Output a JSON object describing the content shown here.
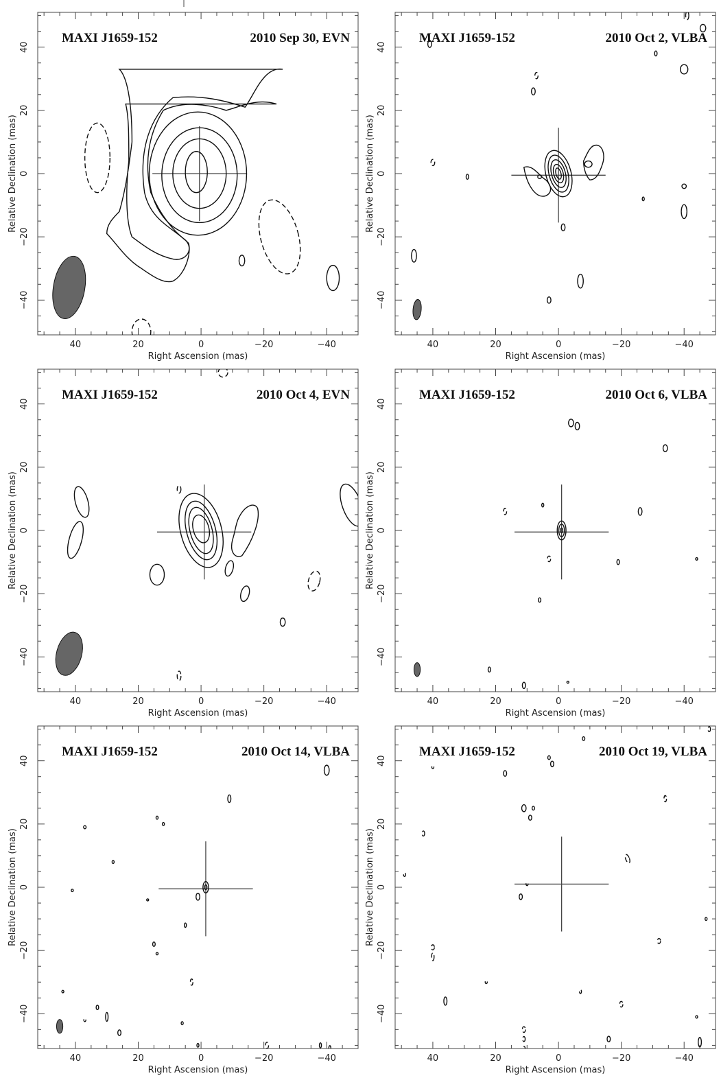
{
  "figure": {
    "source": "MAXI J1659-152",
    "xlabel": "Right Ascension  (mas)",
    "ylabel": "Relative Declination  (mas)",
    "x_ticks": [
      "40",
      "20",
      "0",
      "−20",
      "−40"
    ],
    "y_ticks": [
      "40",
      "20",
      "0",
      "−20",
      "−40"
    ],
    "panels": [
      {
        "id": "sep30",
        "date_label": "2010 Sep 30, EVN"
      },
      {
        "id": "oct2",
        "date_label": "2010 Oct 2, VLBA"
      },
      {
        "id": "oct4",
        "date_label": "2010 Oct 4, EVN"
      },
      {
        "id": "oct6",
        "date_label": "2010 Oct 6, VLBA"
      },
      {
        "id": "oct14",
        "date_label": "2010 Oct 14, VLBA"
      },
      {
        "id": "oct19",
        "date_label": "2010 Oct 19, VLBA"
      }
    ]
  },
  "chart_data": [
    {
      "type": "contour",
      "panel": "sep30",
      "title": "MAXI J1659-152",
      "subtitle": "2010 Sep 30, EVN",
      "xlabel": "Right Ascension  (mas)",
      "ylabel": "Relative Declination  (mas)",
      "xlim": [
        52,
        -50
      ],
      "ylim": [
        -51,
        51
      ],
      "peak_position": [
        0.5,
        0
      ],
      "beam": {
        "center": [
          42,
          -36
        ],
        "major": 10,
        "minor": 5,
        "pa_deg": 10
      },
      "positive_contours": 6,
      "negative_contours": 3
    },
    {
      "type": "contour",
      "panel": "oct2",
      "title": "MAXI J1659-152",
      "subtitle": "2010 Oct 2, VLBA",
      "xlabel": "Right Ascension  (mas)",
      "ylabel": "Relative Declination  (mas)",
      "xlim": [
        52,
        -50
      ],
      "ylim": [
        -51,
        51
      ],
      "peak_position": [
        0,
        0
      ],
      "beam": {
        "center": [
          45,
          -43
        ],
        "major": 3.2,
        "minor": 1.3,
        "pa_deg": 5
      },
      "positive_contours": 6,
      "negative_contours": 0
    },
    {
      "type": "contour",
      "panel": "oct4",
      "title": "MAXI J1659-152",
      "subtitle": "2010 Oct 4, EVN",
      "xlabel": "Right Ascension  (mas)",
      "ylabel": "Relative Declination  (mas)",
      "xlim": [
        52,
        -50
      ],
      "ylim": [
        -51,
        51
      ],
      "peak_position": [
        -1,
        0
      ],
      "beam": {
        "center": [
          42,
          -39
        ],
        "major": 7,
        "minor": 4,
        "pa_deg": 15
      },
      "positive_contours": 4,
      "negative_contours": 2
    },
    {
      "type": "contour",
      "panel": "oct6",
      "title": "MAXI J1659-152",
      "subtitle": "2010 Oct 6, VLBA",
      "xlabel": "Right Ascension  (mas)",
      "ylabel": "Relative Declination  (mas)",
      "xlim": [
        52,
        -50
      ],
      "ylim": [
        -51,
        51
      ],
      "peak_position": [
        -1,
        0
      ],
      "beam": {
        "center": [
          45,
          -44
        ],
        "major": 2.2,
        "minor": 1,
        "pa_deg": 0
      },
      "positive_contours": 3,
      "negative_contours": 0
    },
    {
      "type": "contour",
      "panel": "oct14",
      "title": "MAXI J1659-152",
      "subtitle": "2010 Oct 14, VLBA",
      "xlabel": "Right Ascension  (mas)",
      "ylabel": "Relative Declination  (mas)",
      "xlim": [
        52,
        -50
      ],
      "ylim": [
        -51,
        51
      ],
      "peak_position": [
        -1.5,
        0
      ],
      "beam": {
        "center": [
          45,
          -44
        ],
        "major": 2.2,
        "minor": 1,
        "pa_deg": 0
      },
      "positive_contours": 2,
      "negative_contours": 0
    },
    {
      "type": "contour",
      "panel": "oct19",
      "title": "MAXI J1659-152",
      "subtitle": "2010 Oct 19, VLBA",
      "xlabel": "Right Ascension  (mas)",
      "ylabel": "Relative Declination  (mas)",
      "xlim": [
        52,
        -50
      ],
      "ylim": [
        -51,
        51
      ],
      "peak_position": null,
      "beam": null,
      "positive_contours": 0,
      "negative_contours": 0
    }
  ]
}
